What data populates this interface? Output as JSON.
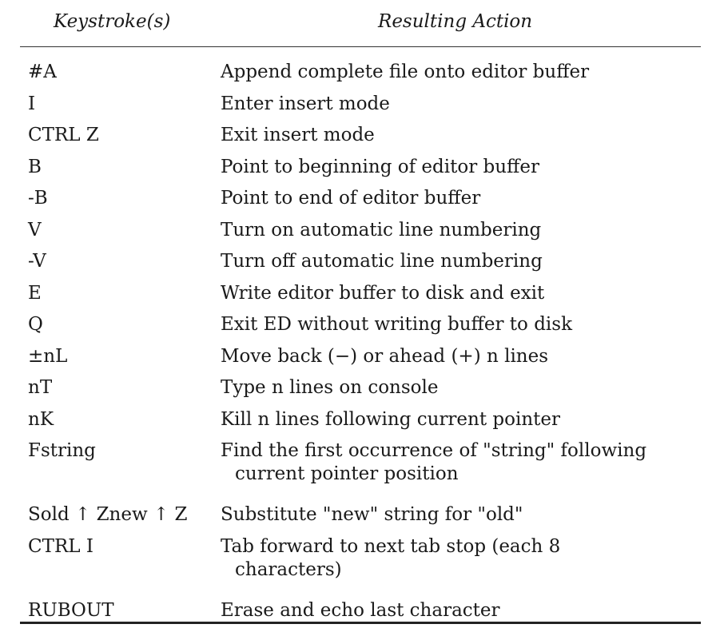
{
  "table": {
    "headers": {
      "keystroke": "Keystroke(s)",
      "action": "Resulting Action"
    },
    "rows": [
      {
        "key": "#A",
        "action": "Append complete file onto editor buffer"
      },
      {
        "key": "I",
        "action": "Enter insert mode"
      },
      {
        "key": "CTRL Z",
        "action": "Exit insert mode"
      },
      {
        "key": "B",
        "action": "Point to beginning of editor buffer"
      },
      {
        "key": "-B",
        "action": "Point to end of editor buffer"
      },
      {
        "key": "V",
        "action": "Turn on automatic line numbering"
      },
      {
        "key": "-V",
        "action": "Turn off automatic line numbering"
      },
      {
        "key": "E",
        "action": "Write editor buffer to disk and exit"
      },
      {
        "key": "Q",
        "action": "Exit ED without writing buffer to disk"
      },
      {
        "key": "±nL",
        "action": "Move back (−) or ahead (+) n lines"
      },
      {
        "key": "nT",
        "action": "Type n lines on console"
      },
      {
        "key": "nK",
        "action": "Kill n lines following current pointer"
      },
      {
        "key": "Fstring",
        "action": "Find the first occurrence of \"string\" following",
        "action_cont": "current pointer position"
      },
      {
        "key": "Sold ↑ Znew ↑ Z",
        "action": "Substitute \"new\" string for \"old\""
      },
      {
        "key": "CTRL I",
        "action": "Tab forward to next tab stop (each 8",
        "action_cont": "characters)"
      },
      {
        "key": "RUBOUT",
        "action": "Erase and echo last character"
      }
    ]
  }
}
